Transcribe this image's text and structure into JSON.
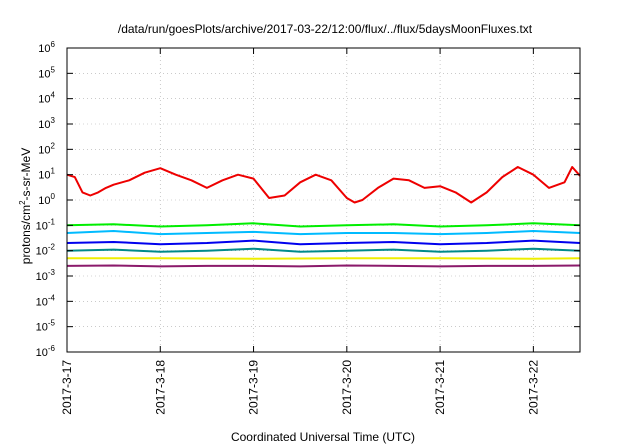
{
  "chart_data": {
    "type": "line",
    "title": "/data/run/goesPlots/archive/2017-03-22/12:00/flux/../flux/5daysMoonFluxes.txt",
    "xlabel": "Coordinated Universal Time (UTC)",
    "ylabel": {
      "main": "protons/cm",
      "sup": "2",
      "rest": "-s-sr-MeV"
    },
    "y_scale": "log",
    "ylim": [
      1e-06,
      1000000.0
    ],
    "y_tick_exponents": [
      -6,
      -5,
      -4,
      -3,
      -2,
      -1,
      0,
      1,
      2,
      3,
      4,
      5,
      6
    ],
    "y_tick_base": "10",
    "xlim": [
      "2017-03-17 00:00",
      "2017-03-22 12:00"
    ],
    "x_ticks": [
      "2017-3-17",
      "2017-3-18",
      "2017-3-19",
      "2017-3-20",
      "2017-3-21",
      "2017-3-22"
    ],
    "grid": true,
    "series": [
      {
        "color": "#ee0000",
        "x": [
          "2017-03-17 00:00",
          "2017-03-17 02:00",
          "2017-03-17 04:00",
          "2017-03-17 06:00",
          "2017-03-17 08:00",
          "2017-03-17 10:00",
          "2017-03-17 12:00",
          "2017-03-17 16:00",
          "2017-03-17 20:00",
          "2017-03-18 00:00",
          "2017-03-18 04:00",
          "2017-03-18 08:00",
          "2017-03-18 12:00",
          "2017-03-18 16:00",
          "2017-03-18 20:00",
          "2017-03-19 00:00",
          "2017-03-19 04:00",
          "2017-03-19 08:00",
          "2017-03-19 12:00",
          "2017-03-19 16:00",
          "2017-03-19 20:00",
          "2017-03-20 00:00",
          "2017-03-20 02:00",
          "2017-03-20 04:00",
          "2017-03-20 08:00",
          "2017-03-20 12:00",
          "2017-03-20 16:00",
          "2017-03-20 20:00",
          "2017-03-21 00:00",
          "2017-03-21 04:00",
          "2017-03-21 08:00",
          "2017-03-21 12:00",
          "2017-03-21 16:00",
          "2017-03-21 20:00",
          "2017-03-22 00:00",
          "2017-03-22 04:00",
          "2017-03-22 08:00",
          "2017-03-22 10:00",
          "2017-03-22 12:00"
        ],
        "y": [
          10,
          8,
          2,
          1.5,
          2,
          3,
          4,
          6,
          12,
          18,
          10,
          6,
          3,
          6,
          10,
          7,
          1.2,
          1.5,
          5,
          10,
          6,
          1.2,
          0.8,
          1,
          3,
          7,
          6,
          3,
          3.5,
          2,
          0.8,
          2,
          8,
          20,
          10,
          3,
          5,
          20,
          9
        ]
      },
      {
        "color": "#00ee00",
        "x": [
          "2017-03-17 00:00",
          "2017-03-17 12:00",
          "2017-03-18 00:00",
          "2017-03-18 12:00",
          "2017-03-19 00:00",
          "2017-03-19 12:00",
          "2017-03-20 00:00",
          "2017-03-20 12:00",
          "2017-03-21 00:00",
          "2017-03-21 12:00",
          "2017-03-22 00:00",
          "2017-03-22 12:00"
        ],
        "y": [
          0.1,
          0.11,
          0.09,
          0.1,
          0.12,
          0.09,
          0.1,
          0.11,
          0.09,
          0.1,
          0.12,
          0.1
        ]
      },
      {
        "color": "#00bbff",
        "x": [
          "2017-03-17 00:00",
          "2017-03-17 12:00",
          "2017-03-18 00:00",
          "2017-03-18 12:00",
          "2017-03-19 00:00",
          "2017-03-19 12:00",
          "2017-03-20 00:00",
          "2017-03-20 12:00",
          "2017-03-21 00:00",
          "2017-03-21 12:00",
          "2017-03-22 00:00",
          "2017-03-22 12:00"
        ],
        "y": [
          0.05,
          0.06,
          0.045,
          0.05,
          0.055,
          0.045,
          0.05,
          0.05,
          0.045,
          0.05,
          0.06,
          0.05
        ]
      },
      {
        "color": "#0000ee",
        "x": [
          "2017-03-17 00:00",
          "2017-03-17 12:00",
          "2017-03-18 00:00",
          "2017-03-18 12:00",
          "2017-03-19 00:00",
          "2017-03-19 12:00",
          "2017-03-20 00:00",
          "2017-03-20 12:00",
          "2017-03-21 00:00",
          "2017-03-21 12:00",
          "2017-03-22 00:00",
          "2017-03-22 12:00"
        ],
        "y": [
          0.02,
          0.022,
          0.018,
          0.02,
          0.025,
          0.018,
          0.02,
          0.022,
          0.018,
          0.02,
          0.025,
          0.02
        ]
      },
      {
        "color": "#008b8b",
        "x": [
          "2017-03-17 00:00",
          "2017-03-17 12:00",
          "2017-03-18 00:00",
          "2017-03-18 12:00",
          "2017-03-19 00:00",
          "2017-03-19 12:00",
          "2017-03-20 00:00",
          "2017-03-20 12:00",
          "2017-03-21 00:00",
          "2017-03-21 12:00",
          "2017-03-22 00:00",
          "2017-03-22 12:00"
        ],
        "y": [
          0.01,
          0.011,
          0.009,
          0.01,
          0.012,
          0.009,
          0.01,
          0.011,
          0.009,
          0.01,
          0.012,
          0.01
        ]
      },
      {
        "color": "#eeee00",
        "x": [
          "2017-03-17 00:00",
          "2017-03-18 00:00",
          "2017-03-19 00:00",
          "2017-03-20 00:00",
          "2017-03-21 00:00",
          "2017-03-22 00:00",
          "2017-03-22 12:00"
        ],
        "y": [
          0.005,
          0.005,
          0.0048,
          0.005,
          0.005,
          0.0048,
          0.005
        ]
      },
      {
        "color": "#8b1a6b",
        "x": [
          "2017-03-17 00:00",
          "2017-03-17 12:00",
          "2017-03-18 00:00",
          "2017-03-18 12:00",
          "2017-03-19 00:00",
          "2017-03-19 12:00",
          "2017-03-20 00:00",
          "2017-03-20 12:00",
          "2017-03-21 00:00",
          "2017-03-21 12:00",
          "2017-03-22 00:00",
          "2017-03-22 12:00"
        ],
        "y": [
          0.0025,
          0.0026,
          0.0024,
          0.0025,
          0.0025,
          0.0024,
          0.0026,
          0.0025,
          0.0024,
          0.0025,
          0.0025,
          0.0026
        ]
      }
    ]
  }
}
